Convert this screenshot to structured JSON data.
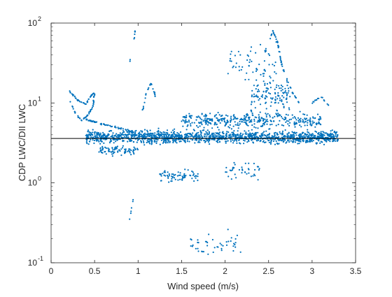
{
  "chart_data": {
    "type": "scatter",
    "title": "",
    "xlabel": "Wind speed (m/s)",
    "ylabel": "CDP LWC/DII LWC",
    "xlim": [
      0,
      3.5
    ],
    "ylim": [
      0.1,
      100
    ],
    "yscale": "log",
    "grid": false,
    "legend": "none",
    "x_ticks": [
      0,
      0.5,
      1,
      1.5,
      2,
      2.5,
      3,
      3.5
    ],
    "x_tick_labels": [
      "0",
      "0.5",
      "1",
      "1.5",
      "2",
      "2.5",
      "3",
      "3.5"
    ],
    "y_ticks": [
      0.1,
      1,
      10,
      100
    ],
    "y_tick_labels": [
      {
        "base": "10",
        "exp": "-1"
      },
      {
        "base": "10",
        "exp": "0"
      },
      {
        "base": "10",
        "exp": "1"
      },
      {
        "base": "10",
        "exp": "2"
      }
    ],
    "reference_line": {
      "y": 3.6,
      "color": "#000000"
    },
    "marker_color": "#0072BD",
    "point_clusters": [
      {
        "x_range": [
          0.4,
          3.3
        ],
        "y_range": [
          2.7,
          5.2
        ],
        "count": 1400
      },
      {
        "x_range": [
          1.5,
          3.1
        ],
        "y_range": [
          4.0,
          9.0
        ],
        "count": 380
      },
      {
        "x_range": [
          2.3,
          2.75
        ],
        "y_range": [
          5.0,
          30.0
        ],
        "count": 120
      },
      {
        "x_range": [
          2.0,
          2.6
        ],
        "y_range": [
          10.0,
          90.0
        ],
        "count": 60
      },
      {
        "x_range": [
          0.55,
          1.0
        ],
        "y_range": [
          2.0,
          3.3
        ],
        "count": 80
      },
      {
        "x_range": [
          1.25,
          1.7
        ],
        "y_range": [
          0.9,
          1.6
        ],
        "count": 70
      },
      {
        "x_range": [
          1.6,
          2.2
        ],
        "y_range": [
          0.1,
          0.3
        ],
        "count": 45
      },
      {
        "x_range": [
          2.0,
          2.4
        ],
        "y_range": [
          0.8,
          2.5
        ],
        "count": 40
      }
    ],
    "point_paths": [
      {
        "points": [
          [
            0.2,
            14.5
          ],
          [
            0.3,
            11.0
          ],
          [
            0.4,
            9.5
          ],
          [
            0.45,
            12.0
          ],
          [
            0.5,
            13.5
          ],
          [
            0.48,
            9.0
          ],
          [
            0.42,
            7.0
          ],
          [
            0.35,
            6.0
          ],
          [
            0.28,
            7.5
          ],
          [
            0.22,
            10.5
          ]
        ],
        "count": 90
      },
      {
        "points": [
          [
            0.4,
            6.2
          ],
          [
            0.6,
            5.4
          ],
          [
            0.8,
            4.8
          ],
          [
            0.95,
            4.3
          ]
        ],
        "count": 60
      },
      {
        "points": [
          [
            0.9,
            30.0
          ],
          [
            0.95,
            60.0
          ],
          [
            0.97,
            92.0
          ]
        ],
        "count": 8
      },
      {
        "points": [
          [
            0.9,
            0.35
          ],
          [
            0.93,
            0.5
          ],
          [
            0.95,
            0.7
          ]
        ],
        "count": 6
      },
      {
        "points": [
          [
            1.05,
            8.0
          ],
          [
            1.1,
            14.0
          ],
          [
            1.15,
            18.0
          ],
          [
            1.2,
            12.0
          ]
        ],
        "count": 25
      },
      {
        "points": [
          [
            2.45,
            40.0
          ],
          [
            2.55,
            80.0
          ],
          [
            2.6,
            60.0
          ],
          [
            2.65,
            30.0
          ],
          [
            2.75,
            15.0
          ],
          [
            2.85,
            10.0
          ]
        ],
        "count": 60
      },
      {
        "points": [
          [
            3.0,
            10.0
          ],
          [
            3.1,
            12.0
          ],
          [
            3.2,
            9.0
          ]
        ],
        "count": 15
      }
    ]
  }
}
